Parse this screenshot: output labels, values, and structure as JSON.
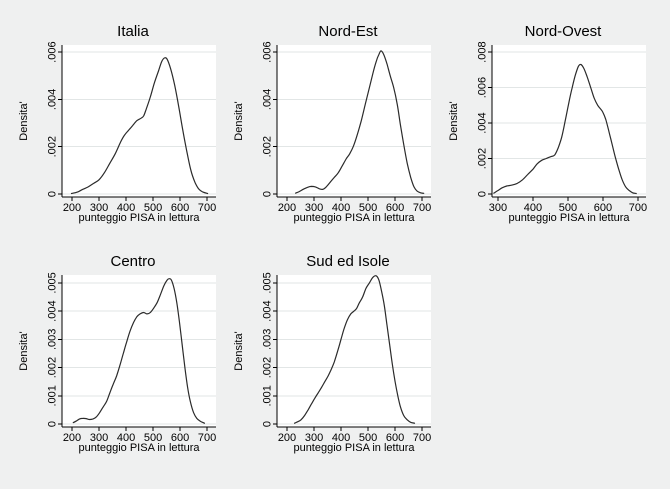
{
  "figure": {
    "background": "#eff0f0",
    "plot_background": "#ffffff",
    "grid_color": "#e2e6e6",
    "axis_color": "#000000",
    "curve_color": "#2b2b2b"
  },
  "chart_data": [
    {
      "type": "line",
      "subtype": "kernel-density",
      "title": "Italia",
      "xlabel": "punteggio PISA in lettura",
      "ylabel": "Densita'",
      "grid": true,
      "legend": "none",
      "xlim": [
        163,
        733
      ],
      "ylim": [
        0,
        0.0063
      ],
      "xticks": [
        200,
        300,
        400,
        500,
        600,
        700
      ],
      "yticks": [
        0,
        0.002,
        0.004,
        0.006
      ],
      "ytick_labels": [
        "0",
        ".002",
        ".004",
        ".006"
      ],
      "points": [
        [
          198,
          2e-05
        ],
        [
          220,
          8e-05
        ],
        [
          240,
          0.0002
        ],
        [
          260,
          0.0003
        ],
        [
          280,
          0.00045
        ],
        [
          300,
          0.0006
        ],
        [
          320,
          0.0009
        ],
        [
          340,
          0.0013
        ],
        [
          360,
          0.0017
        ],
        [
          380,
          0.0022
        ],
        [
          395,
          0.0025
        ],
        [
          410,
          0.0027
        ],
        [
          425,
          0.0029
        ],
        [
          440,
          0.0031
        ],
        [
          455,
          0.0032
        ],
        [
          465,
          0.0033
        ],
        [
          475,
          0.0036
        ],
        [
          490,
          0.0041
        ],
        [
          505,
          0.0047
        ],
        [
          520,
          0.0052
        ],
        [
          532,
          0.0056
        ],
        [
          542,
          0.00575
        ],
        [
          552,
          0.0057
        ],
        [
          565,
          0.0053
        ],
        [
          580,
          0.0046
        ],
        [
          595,
          0.0037
        ],
        [
          610,
          0.0027
        ],
        [
          625,
          0.0018
        ],
        [
          640,
          0.001
        ],
        [
          655,
          0.0005
        ],
        [
          670,
          0.0002
        ],
        [
          685,
          8e-05
        ],
        [
          702,
          2e-05
        ]
      ]
    },
    {
      "type": "line",
      "subtype": "kernel-density",
      "title": "Nord-Est",
      "xlabel": "punteggio PISA in lettura",
      "ylabel": "Densita'",
      "grid": true,
      "legend": "none",
      "xlim": [
        163,
        733
      ],
      "ylim": [
        0,
        0.0063
      ],
      "xticks": [
        200,
        300,
        400,
        500,
        600,
        700
      ],
      "yticks": [
        0,
        0.002,
        0.004,
        0.006
      ],
      "ytick_labels": [
        "0",
        ".002",
        ".004",
        ".006"
      ],
      "points": [
        [
          232,
          4e-05
        ],
        [
          245,
          0.0001
        ],
        [
          260,
          0.0002
        ],
        [
          275,
          0.00028
        ],
        [
          290,
          0.00032
        ],
        [
          305,
          0.0003
        ],
        [
          320,
          0.00022
        ],
        [
          333,
          0.0002
        ],
        [
          345,
          0.0003
        ],
        [
          360,
          0.0005
        ],
        [
          375,
          0.0007
        ],
        [
          390,
          0.0009
        ],
        [
          405,
          0.0012
        ],
        [
          420,
          0.0015
        ],
        [
          432,
          0.0017
        ],
        [
          445,
          0.002
        ],
        [
          460,
          0.0025
        ],
        [
          475,
          0.0031
        ],
        [
          490,
          0.0038
        ],
        [
          505,
          0.0045
        ],
        [
          518,
          0.0051
        ],
        [
          530,
          0.0056
        ],
        [
          540,
          0.0059
        ],
        [
          548,
          0.00605
        ],
        [
          558,
          0.0059
        ],
        [
          570,
          0.0055
        ],
        [
          582,
          0.005
        ],
        [
          595,
          0.0045
        ],
        [
          608,
          0.0038
        ],
        [
          620,
          0.0029
        ],
        [
          632,
          0.0021
        ],
        [
          645,
          0.0013
        ],
        [
          658,
          0.0007
        ],
        [
          670,
          0.0003
        ],
        [
          682,
          0.00012
        ],
        [
          695,
          5e-05
        ],
        [
          706,
          3e-05
        ]
      ]
    },
    {
      "type": "line",
      "subtype": "kernel-density",
      "title": "Nord-Ovest",
      "xlabel": "punteggio PISA in lettura",
      "ylabel": "Densita'",
      "grid": true,
      "legend": "none",
      "xlim": [
        283,
        723
      ],
      "ylim": [
        0,
        0.0084
      ],
      "xticks": [
        300,
        400,
        500,
        600,
        700
      ],
      "yticks": [
        0,
        0.002,
        0.004,
        0.006,
        0.008
      ],
      "ytick_labels": [
        "0",
        ".002",
        ".004",
        ".006",
        ".008"
      ],
      "points": [
        [
          288,
          5e-05
        ],
        [
          300,
          0.0002
        ],
        [
          312,
          0.00035
        ],
        [
          325,
          0.00045
        ],
        [
          340,
          0.0005
        ],
        [
          355,
          0.0006
        ],
        [
          370,
          0.0008
        ],
        [
          385,
          0.0011
        ],
        [
          400,
          0.0014
        ],
        [
          412,
          0.0017
        ],
        [
          425,
          0.0019
        ],
        [
          438,
          0.002
        ],
        [
          450,
          0.0021
        ],
        [
          462,
          0.0022
        ],
        [
          472,
          0.0026
        ],
        [
          482,
          0.0032
        ],
        [
          492,
          0.0041
        ],
        [
          502,
          0.0051
        ],
        [
          512,
          0.006
        ],
        [
          521,
          0.0067
        ],
        [
          530,
          0.0072
        ],
        [
          537,
          0.0073
        ],
        [
          545,
          0.0071
        ],
        [
          555,
          0.0066
        ],
        [
          565,
          0.006
        ],
        [
          575,
          0.0054
        ],
        [
          585,
          0.005
        ],
        [
          593,
          0.0048
        ],
        [
          600,
          0.0046
        ],
        [
          608,
          0.0042
        ],
        [
          616,
          0.0036
        ],
        [
          625,
          0.0029
        ],
        [
          635,
          0.0021
        ],
        [
          645,
          0.0014
        ],
        [
          655,
          0.0008
        ],
        [
          665,
          0.0004
        ],
        [
          675,
          0.0002
        ],
        [
          685,
          7e-05
        ],
        [
          695,
          3e-05
        ]
      ]
    },
    {
      "type": "line",
      "subtype": "kernel-density",
      "title": "Centro",
      "xlabel": "punteggio PISA in lettura",
      "ylabel": "Densita'",
      "grid": true,
      "legend": "none",
      "xlim": [
        163,
        733
      ],
      "ylim": [
        0,
        0.00528
      ],
      "xticks": [
        200,
        300,
        400,
        500,
        600,
        700
      ],
      "yticks": [
        0,
        0.001,
        0.002,
        0.003,
        0.004,
        0.005
      ],
      "ytick_labels": [
        "0",
        ".001",
        ".002",
        ".003",
        ".004",
        ".005"
      ],
      "points": [
        [
          205,
          5e-05
        ],
        [
          215,
          0.0001
        ],
        [
          228,
          0.00018
        ],
        [
          240,
          0.0002
        ],
        [
          252,
          0.00019
        ],
        [
          265,
          0.00016
        ],
        [
          278,
          0.00018
        ],
        [
          290,
          0.00025
        ],
        [
          302,
          0.0004
        ],
        [
          315,
          0.0006
        ],
        [
          328,
          0.0008
        ],
        [
          340,
          0.0011
        ],
        [
          352,
          0.0014
        ],
        [
          365,
          0.0017
        ],
        [
          378,
          0.0021
        ],
        [
          390,
          0.0025
        ],
        [
          402,
          0.0029
        ],
        [
          415,
          0.0033
        ],
        [
          428,
          0.0036
        ],
        [
          440,
          0.0038
        ],
        [
          452,
          0.0039
        ],
        [
          465,
          0.00395
        ],
        [
          478,
          0.0039
        ],
        [
          490,
          0.00395
        ],
        [
          502,
          0.0041
        ],
        [
          515,
          0.0043
        ],
        [
          528,
          0.0046
        ],
        [
          540,
          0.0049
        ],
        [
          552,
          0.0051
        ],
        [
          560,
          0.00515
        ],
        [
          568,
          0.0051
        ],
        [
          578,
          0.0048
        ],
        [
          588,
          0.0043
        ],
        [
          598,
          0.0036
        ],
        [
          608,
          0.0028
        ],
        [
          618,
          0.002
        ],
        [
          628,
          0.0013
        ],
        [
          638,
          0.0008
        ],
        [
          650,
          0.0004
        ],
        [
          662,
          0.0002
        ],
        [
          675,
          0.0001
        ],
        [
          690,
          3e-05
        ]
      ]
    },
    {
      "type": "line",
      "subtype": "kernel-density",
      "title": "Sud ed Isole",
      "xlabel": "punteggio PISA in lettura",
      "ylabel": "Densita'",
      "grid": true,
      "legend": "none",
      "xlim": [
        163,
        733
      ],
      "ylim": [
        0,
        0.00528
      ],
      "xticks": [
        200,
        300,
        400,
        500,
        600,
        700
      ],
      "yticks": [
        0,
        0.001,
        0.002,
        0.003,
        0.004,
        0.005
      ],
      "ytick_labels": [
        "0",
        ".001",
        ".002",
        ".003",
        ".004",
        ".005"
      ],
      "points": [
        [
          228,
          3e-05
        ],
        [
          240,
          8e-05
        ],
        [
          252,
          0.00015
        ],
        [
          265,
          0.0003
        ],
        [
          278,
          0.0005
        ],
        [
          290,
          0.0007
        ],
        [
          302,
          0.0009
        ],
        [
          315,
          0.0011
        ],
        [
          328,
          0.0013
        ],
        [
          340,
          0.0015
        ],
        [
          352,
          0.0017
        ],
        [
          362,
          0.0019
        ],
        [
          375,
          0.0022
        ],
        [
          388,
          0.0026
        ],
        [
          400,
          0.003
        ],
        [
          412,
          0.0034
        ],
        [
          424,
          0.0037
        ],
        [
          436,
          0.0039
        ],
        [
          448,
          0.004
        ],
        [
          458,
          0.0041
        ],
        [
          468,
          0.0043
        ],
        [
          480,
          0.0045
        ],
        [
          492,
          0.0048
        ],
        [
          505,
          0.005
        ],
        [
          518,
          0.0052
        ],
        [
          530,
          0.00525
        ],
        [
          540,
          0.0051
        ],
        [
          550,
          0.0047
        ],
        [
          560,
          0.0042
        ],
        [
          570,
          0.0035
        ],
        [
          580,
          0.0028
        ],
        [
          590,
          0.0021
        ],
        [
          600,
          0.0015
        ],
        [
          610,
          0.001
        ],
        [
          620,
          0.0006
        ],
        [
          632,
          0.0003
        ],
        [
          645,
          0.00015
        ],
        [
          658,
          6e-05
        ],
        [
          672,
          3e-05
        ]
      ]
    }
  ]
}
